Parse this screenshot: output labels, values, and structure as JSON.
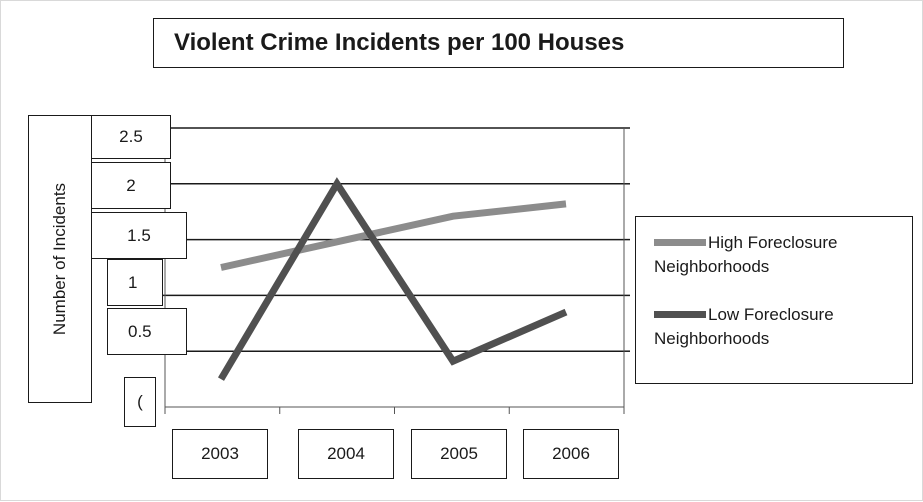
{
  "chart_data": {
    "type": "line",
    "title": "Violent Crime Incidents per 100 Houses",
    "ylabel": "Number of Incidents",
    "xlabel": "",
    "categories": [
      "2003",
      "2004",
      "2005",
      "2006"
    ],
    "y_ticks": [
      "2.5",
      "2",
      "1.5",
      "1",
      "0.5",
      "("
    ],
    "ylim": [
      0,
      2.5
    ],
    "grid": true,
    "legend_position": "right",
    "series": [
      {
        "name": "High Foreclosure Neighborhoods",
        "legend_line1": "High Foreclosure",
        "legend_line2": "Neighborhoods",
        "color": "#8c8c8c",
        "values": [
          1.25,
          1.48,
          1.71,
          1.82
        ]
      },
      {
        "name": "Low Foreclosure Neighborhoods",
        "legend_line1": "Low Foreclosure",
        "legend_line2": "Neighborhoods",
        "color": "#505050",
        "values": [
          0.25,
          2.0,
          0.41,
          0.85
        ]
      }
    ]
  }
}
